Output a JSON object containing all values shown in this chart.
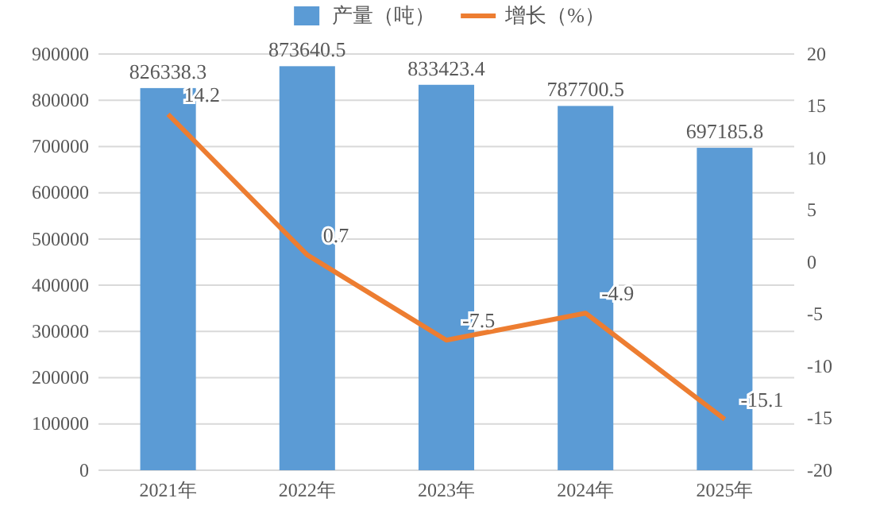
{
  "chart_data": {
    "type": "bar",
    "categories": [
      "2021年",
      "2022年",
      "2023年",
      "2024年",
      "2025年"
    ],
    "series": [
      {
        "name": "产量（吨）",
        "color": "#5b9bd5",
        "values": [
          826338.3,
          873640.5,
          833423.4,
          787700.5,
          697185.8
        ]
      },
      {
        "name": "增长（%）",
        "type": "line",
        "axis": "y2",
        "color": "#ed7d31",
        "values": [
          14.2,
          0.7,
          -7.5,
          -4.9,
          -15.1
        ]
      }
    ],
    "ylim": [
      0,
      900000
    ],
    "yticks": [
      0,
      100000,
      200000,
      300000,
      400000,
      500000,
      600000,
      700000,
      800000,
      900000
    ],
    "y2lim": [
      -20,
      20
    ],
    "y2ticks": [
      -20,
      -15,
      -10,
      -5,
      0,
      5,
      10,
      15,
      20
    ],
    "grid": "y",
    "legend": "top",
    "data_labels": true,
    "marker": "none",
    "line_style": "solid"
  }
}
